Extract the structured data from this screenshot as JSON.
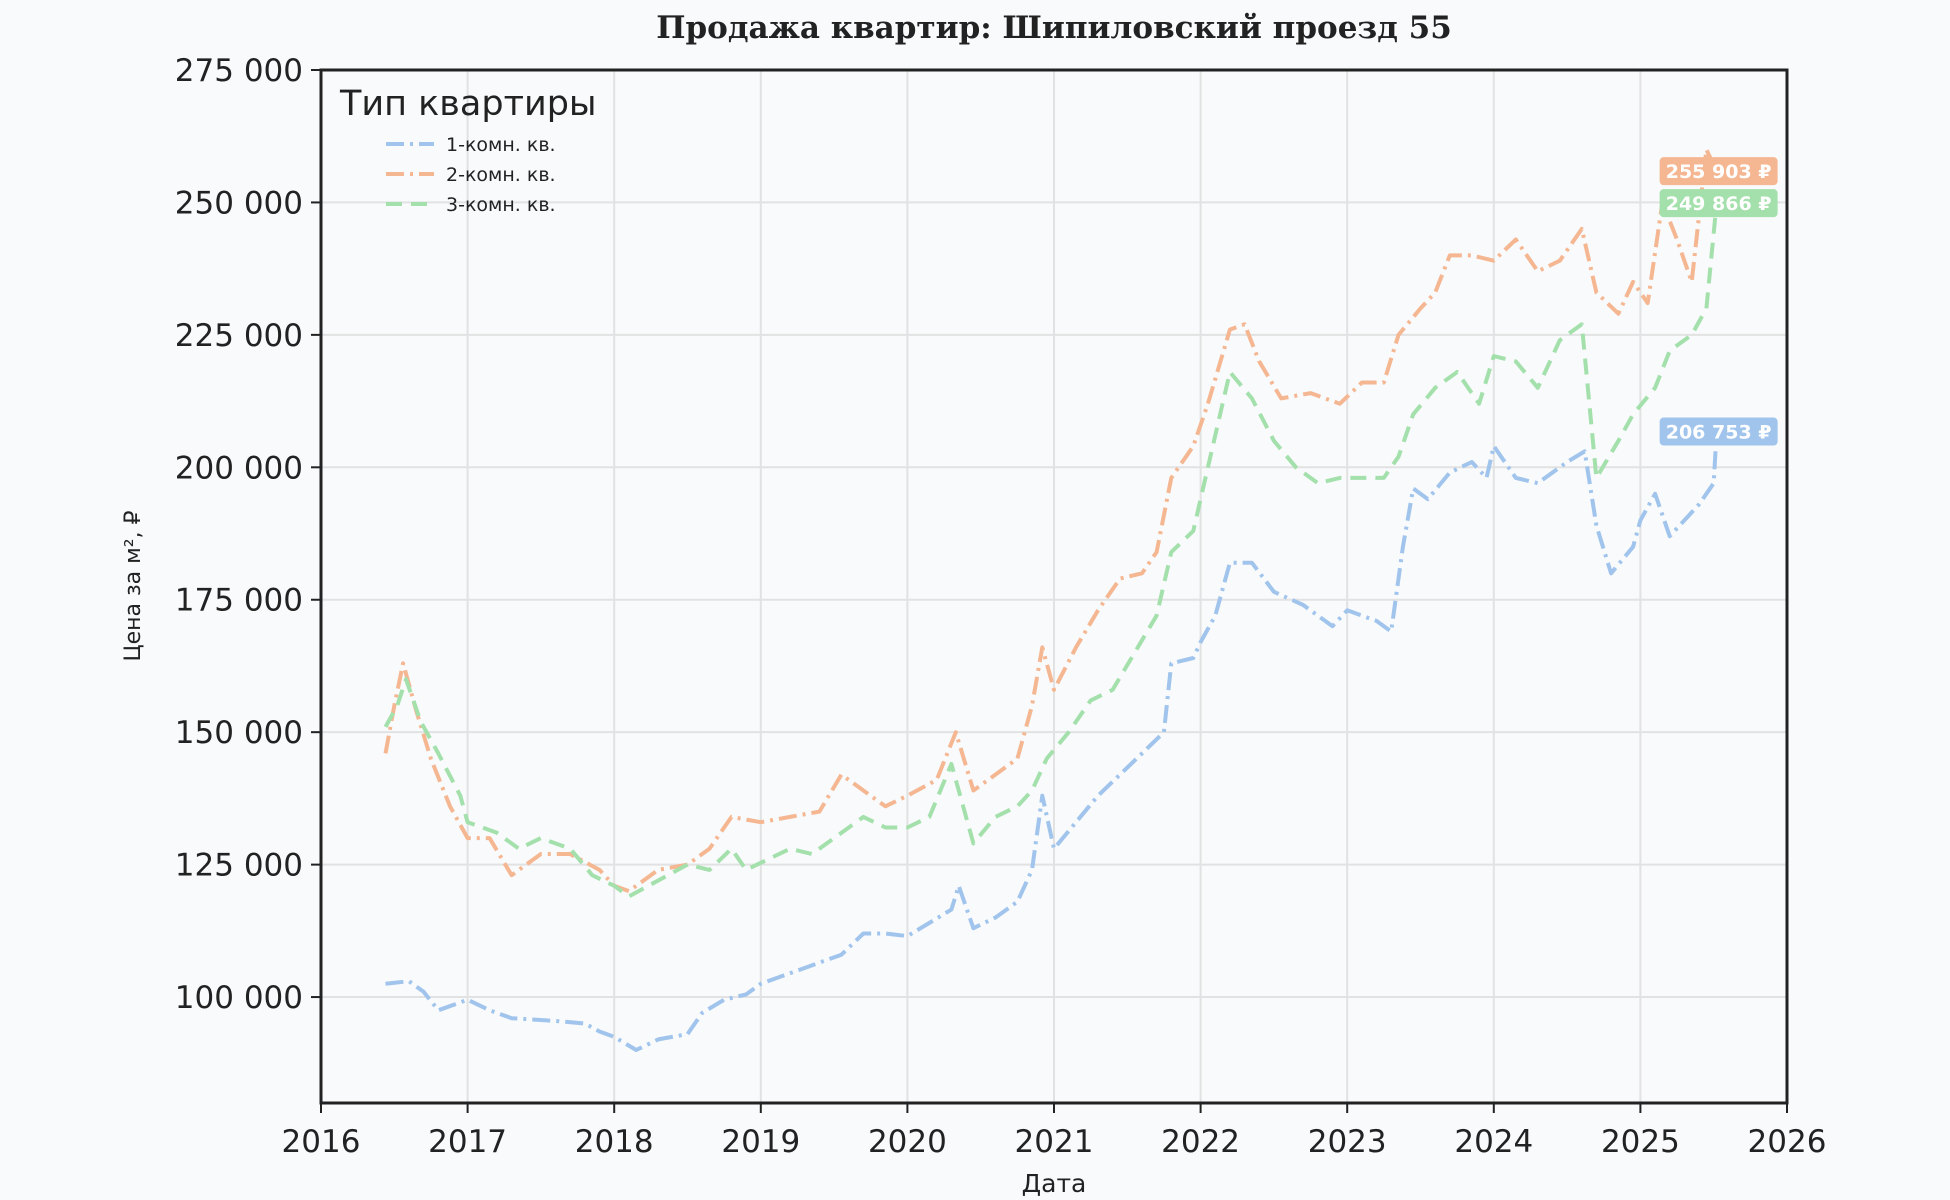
{
  "chart_data": {
    "type": "line",
    "title": "Продажа квартир: Шипиловский проезд 55",
    "xlabel": "Дата",
    "ylabel": "Цена за м², ₽",
    "xlim": [
      2016.0,
      2026.0
    ],
    "ylim": [
      80000,
      275000
    ],
    "xticks": [
      2016,
      2017,
      2018,
      2019,
      2020,
      2021,
      2022,
      2023,
      2024,
      2025,
      2026
    ],
    "xtick_labels": [
      "2016",
      "2017",
      "2018",
      "2019",
      "2020",
      "2021",
      "2022",
      "2023",
      "2024",
      "2025",
      "2026"
    ],
    "yticks": [
      100000,
      125000,
      150000,
      175000,
      200000,
      225000,
      250000,
      275000
    ],
    "ytick_labels": [
      "100 000",
      "125 000",
      "150 000",
      "175 000",
      "200 000",
      "225 000",
      "250 000",
      "275 000"
    ],
    "grid": true,
    "legend": {
      "title": "Тип квартиры",
      "placement": "top-left"
    },
    "series": [
      {
        "name": "1-комн. кв.",
        "color": "#a1c4ec",
        "dash": "dashdot",
        "end_label": "206 753 ₽",
        "points": [
          [
            2016.44,
            102500
          ],
          [
            2016.6,
            103000
          ],
          [
            2016.7,
            101000
          ],
          [
            2016.8,
            97500
          ],
          [
            2017.0,
            99500
          ],
          [
            2017.15,
            97500
          ],
          [
            2017.3,
            96000
          ],
          [
            2017.6,
            95500
          ],
          [
            2017.8,
            95000
          ],
          [
            2017.9,
            93500
          ],
          [
            2018.0,
            92500
          ],
          [
            2018.15,
            90000
          ],
          [
            2018.3,
            92000
          ],
          [
            2018.5,
            93000
          ],
          [
            2018.6,
            97000
          ],
          [
            2018.75,
            99500
          ],
          [
            2018.9,
            100500
          ],
          [
            2019.0,
            102500
          ],
          [
            2019.2,
            104500
          ],
          [
            2019.4,
            106500
          ],
          [
            2019.55,
            108000
          ],
          [
            2019.7,
            112000
          ],
          [
            2019.85,
            112000
          ],
          [
            2020.0,
            111500
          ],
          [
            2020.15,
            114000
          ],
          [
            2020.3,
            116500
          ],
          [
            2020.35,
            121000
          ],
          [
            2020.45,
            113000
          ],
          [
            2020.6,
            115000
          ],
          [
            2020.75,
            118000
          ],
          [
            2020.85,
            124000
          ],
          [
            2020.92,
            138000
          ],
          [
            2021.0,
            128000
          ],
          [
            2021.15,
            133000
          ],
          [
            2021.3,
            138000
          ],
          [
            2021.45,
            142000
          ],
          [
            2021.6,
            146000
          ],
          [
            2021.75,
            150000
          ],
          [
            2021.8,
            163000
          ],
          [
            2021.95,
            164000
          ],
          [
            2022.0,
            167000
          ],
          [
            2022.1,
            172000
          ],
          [
            2022.2,
            182000
          ],
          [
            2022.35,
            182000
          ],
          [
            2022.5,
            176500
          ],
          [
            2022.7,
            174000
          ],
          [
            2022.9,
            170000
          ],
          [
            2023.0,
            173000
          ],
          [
            2023.2,
            171000
          ],
          [
            2023.3,
            169000
          ],
          [
            2023.38,
            185000
          ],
          [
            2023.45,
            196000
          ],
          [
            2023.55,
            194000
          ],
          [
            2023.7,
            199000
          ],
          [
            2023.85,
            201000
          ],
          [
            2023.95,
            198000
          ],
          [
            2024.0,
            204000
          ],
          [
            2024.15,
            198000
          ],
          [
            2024.3,
            197000
          ],
          [
            2024.5,
            201000
          ],
          [
            2024.62,
            203000
          ],
          [
            2024.7,
            189000
          ],
          [
            2024.8,
            180000
          ],
          [
            2024.95,
            185000
          ],
          [
            2025.0,
            190000
          ],
          [
            2025.1,
            195000
          ],
          [
            2025.2,
            187000
          ],
          [
            2025.3,
            190000
          ],
          [
            2025.4,
            193000
          ],
          [
            2025.5,
            197000
          ],
          [
            2025.52,
            206753
          ]
        ]
      },
      {
        "name": "2-комн. кв.",
        "color": "#f5b792",
        "dash": "dashdot",
        "end_label": "255 903 ₽",
        "points": [
          [
            2016.44,
            146000
          ],
          [
            2016.5,
            155000
          ],
          [
            2016.56,
            163000
          ],
          [
            2016.65,
            154000
          ],
          [
            2016.75,
            145000
          ],
          [
            2016.88,
            136000
          ],
          [
            2017.0,
            130000
          ],
          [
            2017.15,
            130000
          ],
          [
            2017.3,
            123000
          ],
          [
            2017.5,
            127000
          ],
          [
            2017.7,
            127000
          ],
          [
            2017.9,
            124000
          ],
          [
            2018.0,
            121000
          ],
          [
            2018.1,
            120000
          ],
          [
            2018.3,
            124000
          ],
          [
            2018.5,
            125000
          ],
          [
            2018.65,
            128000
          ],
          [
            2018.8,
            134000
          ],
          [
            2019.0,
            133000
          ],
          [
            2019.2,
            134000
          ],
          [
            2019.4,
            135000
          ],
          [
            2019.55,
            142000
          ],
          [
            2019.7,
            139000
          ],
          [
            2019.85,
            136000
          ],
          [
            2020.0,
            138000
          ],
          [
            2020.2,
            141000
          ],
          [
            2020.33,
            150000
          ],
          [
            2020.45,
            139000
          ],
          [
            2020.6,
            142000
          ],
          [
            2020.75,
            145000
          ],
          [
            2020.85,
            155000
          ],
          [
            2020.92,
            166000
          ],
          [
            2021.0,
            158000
          ],
          [
            2021.15,
            166000
          ],
          [
            2021.3,
            173000
          ],
          [
            2021.45,
            179000
          ],
          [
            2021.6,
            180000
          ],
          [
            2021.7,
            184000
          ],
          [
            2021.8,
            198000
          ],
          [
            2021.95,
            204000
          ],
          [
            2022.05,
            212000
          ],
          [
            2022.2,
            226000
          ],
          [
            2022.3,
            227000
          ],
          [
            2022.4,
            220000
          ],
          [
            2022.55,
            213000
          ],
          [
            2022.75,
            214000
          ],
          [
            2022.95,
            212000
          ],
          [
            2023.1,
            216000
          ],
          [
            2023.25,
            216000
          ],
          [
            2023.35,
            225000
          ],
          [
            2023.5,
            230000
          ],
          [
            2023.6,
            233000
          ],
          [
            2023.7,
            240000
          ],
          [
            2023.85,
            240000
          ],
          [
            2024.0,
            239000
          ],
          [
            2024.15,
            243000
          ],
          [
            2024.3,
            237000
          ],
          [
            2024.45,
            239000
          ],
          [
            2024.6,
            245000
          ],
          [
            2024.7,
            233000
          ],
          [
            2024.85,
            229000
          ],
          [
            2024.95,
            235000
          ],
          [
            2025.05,
            231000
          ],
          [
            2025.15,
            250000
          ],
          [
            2025.25,
            243000
          ],
          [
            2025.35,
            235000
          ],
          [
            2025.45,
            260000
          ],
          [
            2025.52,
            255903
          ]
        ]
      },
      {
        "name": "3-комн. кв.",
        "color": "#a4e0ab",
        "dash": "dashed",
        "end_label": "249 866 ₽",
        "points": [
          [
            2016.44,
            151000
          ],
          [
            2016.52,
            155000
          ],
          [
            2016.58,
            160000
          ],
          [
            2016.68,
            152000
          ],
          [
            2016.8,
            146000
          ],
          [
            2016.95,
            138000
          ],
          [
            2017.0,
            133000
          ],
          [
            2017.2,
            131000
          ],
          [
            2017.35,
            128000
          ],
          [
            2017.5,
            130000
          ],
          [
            2017.7,
            128000
          ],
          [
            2017.85,
            123000
          ],
          [
            2018.0,
            121000
          ],
          [
            2018.1,
            119000
          ],
          [
            2018.3,
            122000
          ],
          [
            2018.5,
            125000
          ],
          [
            2018.65,
            124000
          ],
          [
            2018.8,
            128000
          ],
          [
            2018.9,
            124000
          ],
          [
            2019.05,
            126000
          ],
          [
            2019.2,
            128000
          ],
          [
            2019.35,
            127000
          ],
          [
            2019.5,
            130000
          ],
          [
            2019.7,
            134000
          ],
          [
            2019.85,
            132000
          ],
          [
            2020.0,
            132000
          ],
          [
            2020.15,
            134000
          ],
          [
            2020.3,
            144000
          ],
          [
            2020.45,
            129000
          ],
          [
            2020.6,
            134000
          ],
          [
            2020.75,
            136000
          ],
          [
            2020.85,
            139000
          ],
          [
            2020.95,
            145000
          ],
          [
            2021.1,
            150000
          ],
          [
            2021.25,
            156000
          ],
          [
            2021.4,
            158000
          ],
          [
            2021.55,
            165000
          ],
          [
            2021.7,
            172000
          ],
          [
            2021.8,
            184000
          ],
          [
            2021.95,
            188000
          ],
          [
            2022.05,
            200000
          ],
          [
            2022.2,
            218000
          ],
          [
            2022.35,
            213000
          ],
          [
            2022.5,
            205000
          ],
          [
            2022.65,
            200000
          ],
          [
            2022.8,
            197000
          ],
          [
            2022.95,
            198000
          ],
          [
            2023.1,
            198000
          ],
          [
            2023.25,
            198000
          ],
          [
            2023.35,
            202000
          ],
          [
            2023.45,
            210000
          ],
          [
            2023.6,
            215000
          ],
          [
            2023.75,
            218000
          ],
          [
            2023.9,
            212000
          ],
          [
            2024.0,
            221000
          ],
          [
            2024.15,
            220000
          ],
          [
            2024.3,
            215000
          ],
          [
            2024.45,
            224000
          ],
          [
            2024.6,
            227000
          ],
          [
            2024.7,
            198000
          ],
          [
            2024.85,
            205000
          ],
          [
            2024.95,
            210000
          ],
          [
            2025.1,
            215000
          ],
          [
            2025.2,
            222000
          ],
          [
            2025.35,
            225000
          ],
          [
            2025.45,
            230000
          ],
          [
            2025.52,
            249866
          ]
        ]
      }
    ]
  }
}
